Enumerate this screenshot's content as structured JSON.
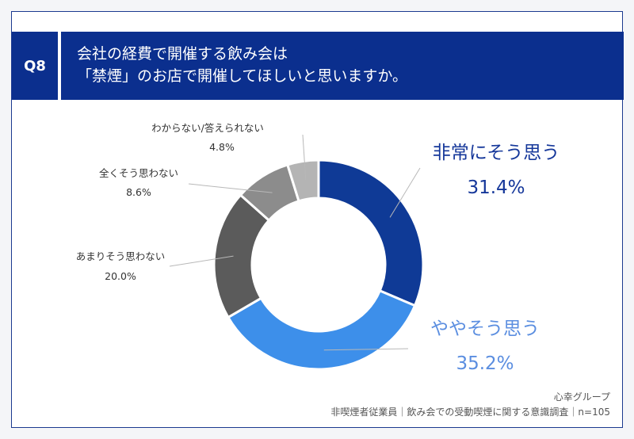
{
  "question": {
    "number": "Q8",
    "line1": "会社の経費で開催する飲み会は",
    "line2": "「禁煙」のお店で開催してほしいと思いますか。"
  },
  "chart_data": {
    "type": "donut",
    "unit": "%",
    "slices": [
      {
        "label": "非常にそう思う",
        "value": 31.4,
        "value_text": "31.4%",
        "color": "#0f3a96"
      },
      {
        "label": "ややそう思う",
        "value": 35.2,
        "value_text": "35.2%",
        "color": "#3d8fea"
      },
      {
        "label": "あまりそう思わない",
        "value": 20.0,
        "value_text": "20.0%",
        "color": "#5b5b5b"
      },
      {
        "label": "全くそう思わない",
        "value": 8.6,
        "value_text": "8.6%",
        "color": "#8c8c8c"
      },
      {
        "label": "わからない/答えられない",
        "value": 4.8,
        "value_text": "4.8%",
        "color": "#b4b4b4"
      }
    ]
  },
  "footer": {
    "source": "心幸グループ",
    "survey": "非喫煙者従業員｜飲み会での受動喫煙に関する意識調査｜n=105"
  }
}
